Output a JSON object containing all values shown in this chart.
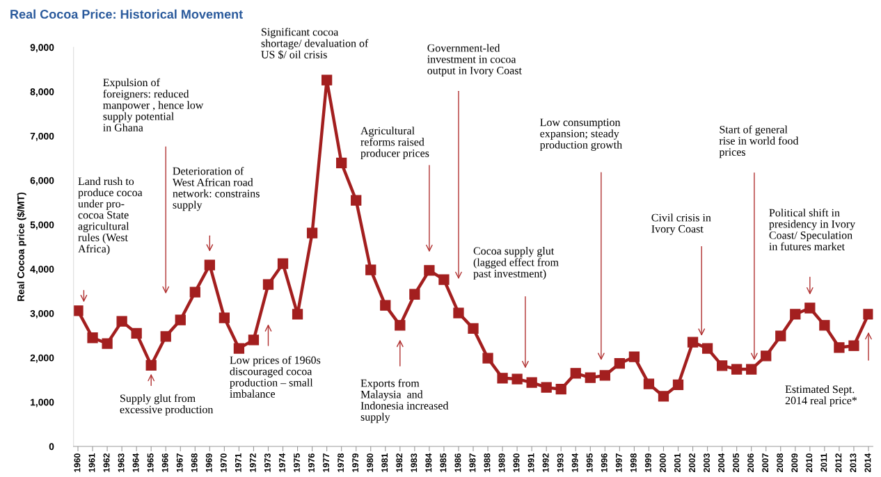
{
  "chart_data": {
    "type": "line",
    "title": "Real Cocoa Price: Historical Movement",
    "ylabel": "Real Cocoa price ($/MT)",
    "categories": [
      "1960",
      "1961",
      "1962",
      "1963",
      "1964",
      "1965",
      "1966",
      "1967",
      "1968",
      "1969",
      "1970",
      "1971",
      "1972",
      "1973",
      "1974",
      "1975",
      "1976",
      "1977",
      "1978",
      "1979",
      "1980",
      "1981",
      "1982",
      "1983",
      "1984",
      "1985",
      "1986",
      "1987",
      "1988",
      "1989",
      "1990",
      "1991",
      "1992",
      "1993",
      "1994",
      "1995",
      "1996",
      "1997",
      "1998",
      "1999",
      "2000",
      "2001",
      "2002",
      "2003",
      "2004",
      "2005",
      "2006",
      "2007",
      "2008",
      "2009",
      "2010",
      "2011",
      "2012",
      "2013",
      "2014"
    ],
    "series": [
      {
        "color": "#a31f1f",
        "values": [
          3060,
          2450,
          2320,
          2820,
          2550,
          1830,
          2480,
          2850,
          3480,
          4090,
          2900,
          2210,
          2400,
          3650,
          4120,
          2980,
          4810,
          8260,
          6390,
          5550,
          3980,
          3180,
          2730,
          3430,
          3970,
          3760,
          3010,
          2660,
          1990,
          1540,
          1520,
          1440,
          1330,
          1290,
          1650,
          1550,
          1600,
          1870,
          2020,
          1410,
          1130,
          1390,
          2350,
          2210,
          1820,
          1740,
          1740,
          2040,
          2490,
          2980,
          3120,
          2730,
          2230,
          2270,
          2980
        ]
      }
    ],
    "ylim": [
      0,
      9000
    ],
    "yticks": [
      0,
      {
        "value": 1000,
        "label": "1,000"
      },
      {
        "value": 2000,
        "label": "2,000"
      },
      {
        "value": 3000,
        "label": "3,000"
      },
      {
        "value": 4000,
        "label": "4,000"
      },
      {
        "value": 5000,
        "label": "5,000"
      },
      {
        "value": 6000,
        "label": "6,000"
      },
      {
        "value": 7000,
        "label": "7,000"
      },
      {
        "value": 8000,
        "label": "8,000"
      },
      {
        "value": 9000,
        "label": "9,000"
      }
    ],
    "marker": "square",
    "line_style": "solid",
    "grid": false,
    "annotations": [
      "Land rush to\nproduce cocoa\nunder pro-\ncocoa State\nagricultural\nrules (West\nAfrica)",
      "Supply glut from\nexcessive production",
      "Expulsion of\nforeigners: reduced\nmanpower , hence low\nsupply potential\nin Ghana",
      "Deterioration of\nWest African road\nnetwork: constrains\nsupply",
      "Low prices of 1960s\ndiscouraged cocoa\nproduction – small\nimbalance",
      "Significant cocoa\nshortage/ devaluation of\nUS $/ oil crisis",
      "Agricultural\nreforms raised\nproducer prices",
      "Exports from\nMalaysia  and\nIndonesia increased\nsupply",
      "Government-led\ninvestment in cocoa\noutput in Ivory Coast",
      "Cocoa supply glut\n(lagged effect from\npast investment)",
      "Low consumption\nexpansion; steady\nproduction growth",
      "Civil crisis in\nIvory Coast",
      "Start of general\nrise in world food\nprices",
      "Political shift in\npresidency in Ivory\nCoast/ Speculation\nin futures market",
      "Estimated Sept.\n2014 real price*"
    ]
  }
}
